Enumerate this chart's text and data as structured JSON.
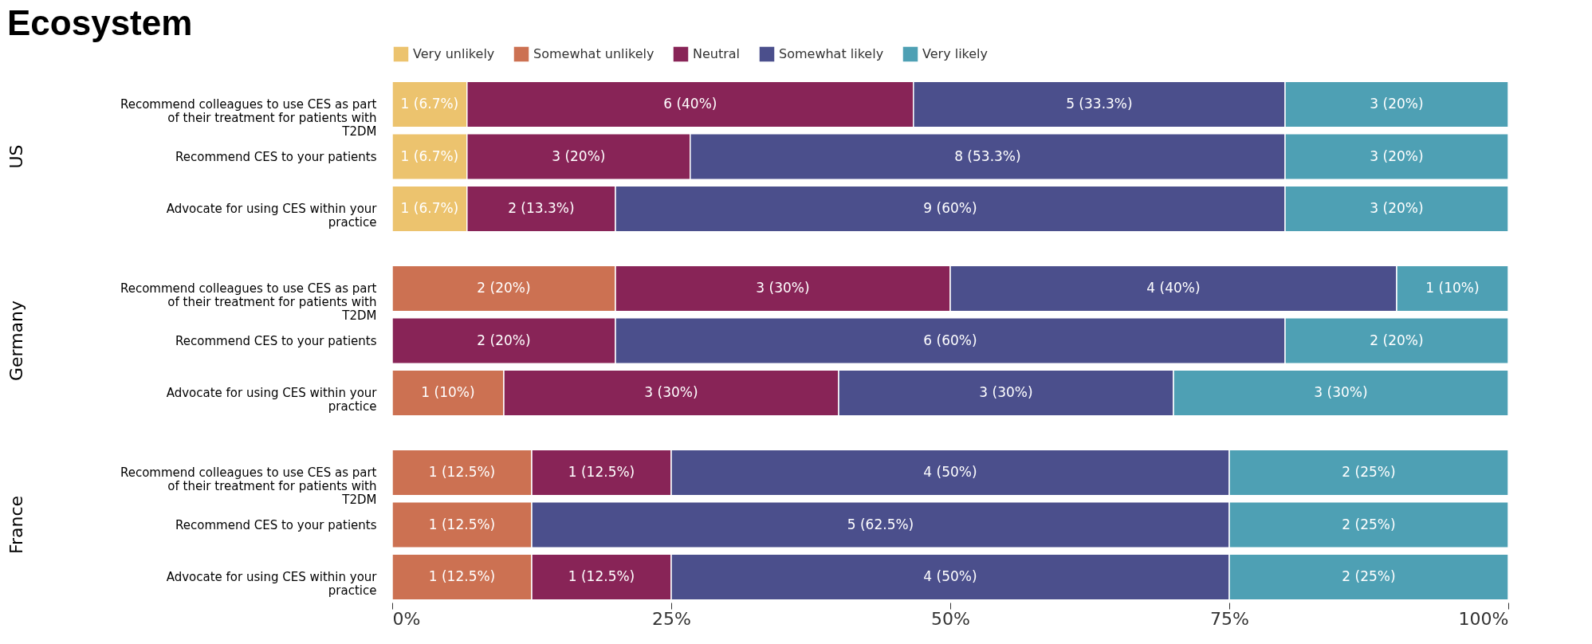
{
  "chart_data": [
    {
      "type": "bar",
      "orientation": "horizontal",
      "stacked": true,
      "title": "Ecosystem",
      "ylabel": "US",
      "legend": "top",
      "grid": false,
      "tick_labels": "y",
      "categories": [
        "Recommend colleagues to use CES as part of their treatment for patients with T2DM",
        "Recommend CES to your patients",
        "Advocate for using CES within your practice"
      ],
      "xlim": [
        0,
        100
      ],
      "series": [
        {
          "name": "Very unlikely",
          "color": "#ecc36e",
          "values": [
            6.7,
            6.7,
            6.7
          ],
          "value_labels": [
            "1 (6.7%)",
            "1 (6.7%)",
            "1 (6.7%)"
          ]
        },
        {
          "name": "Somewhat unlikely",
          "color": "#cc7152",
          "values": [
            null,
            null,
            null
          ],
          "value_labels": [
            null,
            null,
            null
          ]
        },
        {
          "name": "Neutral",
          "color": "#882457",
          "values": [
            40,
            20,
            13.3
          ],
          "value_labels": [
            "6 (40%)",
            "3 (20%)",
            "2 (13.3%)"
          ]
        },
        {
          "name": "Somewhat likely",
          "color": "#4b4f8c",
          "values": [
            33.3,
            53.3,
            60
          ],
          "value_labels": [
            "5 (33.3%)",
            "8 (53.3%)",
            "9 (60%)"
          ]
        },
        {
          "name": "Very likely",
          "color": "#4ea0b4",
          "values": [
            20,
            20,
            20
          ],
          "value_labels": [
            "3 (20%)",
            "3 (20%)",
            "3 (20%)"
          ]
        }
      ]
    },
    {
      "type": "bar",
      "orientation": "horizontal",
      "stacked": true,
      "ylabel": "Germany",
      "grid": false,
      "tick_labels": "y",
      "categories": [
        "Recommend colleagues to use CES as part of their treatment for patients with T2DM",
        "Recommend CES to your patients",
        "Advocate for using CES within your practice"
      ],
      "xlim": [
        0,
        100
      ],
      "series": [
        {
          "color": "#ecc36e",
          "values": [
            null,
            null,
            null
          ],
          "value_labels": [
            null,
            null,
            null
          ]
        },
        {
          "color": "#cc7152",
          "values": [
            20,
            null,
            10
          ],
          "value_labels": [
            "2 (20%)",
            null,
            "1 (10%)"
          ]
        },
        {
          "color": "#882457",
          "values": [
            30,
            20,
            30
          ],
          "value_labels": [
            "3 (30%)",
            "2 (20%)",
            "3 (30%)"
          ]
        },
        {
          "color": "#4b4f8c",
          "values": [
            40,
            60,
            30
          ],
          "value_labels": [
            "4 (40%)",
            "6 (60%)",
            "3 (30%)"
          ]
        },
        {
          "color": "#4ea0b4",
          "values": [
            10,
            20,
            30
          ],
          "value_labels": [
            "1 (10%)",
            "2 (20%)",
            "3 (30%)"
          ]
        }
      ]
    },
    {
      "type": "bar",
      "orientation": "horizontal",
      "stacked": true,
      "ylabel": "France",
      "grid": false,
      "categories": [
        "Recommend colleagues to use CES as part of their treatment for patients with T2DM",
        "Recommend CES to your patients",
        "Advocate for using CES within your practice"
      ],
      "xlim": [
        0,
        100
      ],
      "xticks": [
        {
          "value": 0,
          "label": "0%"
        },
        {
          "value": 25,
          "label": "25%"
        },
        {
          "value": 50,
          "label": "50%"
        },
        {
          "value": 75,
          "label": "75%"
        },
        {
          "value": 100,
          "label": "100%"
        }
      ],
      "series": [
        {
          "color": "#ecc36e",
          "values": [
            null,
            null,
            null
          ],
          "value_labels": [
            null,
            null,
            null
          ]
        },
        {
          "color": "#cc7152",
          "values": [
            12.5,
            12.5,
            12.5
          ],
          "value_labels": [
            "1 (12.5%)",
            "1 (12.5%)",
            "1 (12.5%)"
          ]
        },
        {
          "color": "#882457",
          "values": [
            12.5,
            null,
            12.5
          ],
          "value_labels": [
            "1 (12.5%)",
            null,
            "1 (12.5%)"
          ]
        },
        {
          "color": "#4b4f8c",
          "values": [
            50,
            62.5,
            50
          ],
          "value_labels": [
            "4 (50%)",
            "5 (62.5%)",
            "4 (50%)"
          ]
        },
        {
          "color": "#4ea0b4",
          "values": [
            25,
            25,
            25
          ],
          "value_labels": [
            "2 (25%)",
            "2 (25%)",
            "2 (25%)"
          ]
        }
      ]
    }
  ]
}
